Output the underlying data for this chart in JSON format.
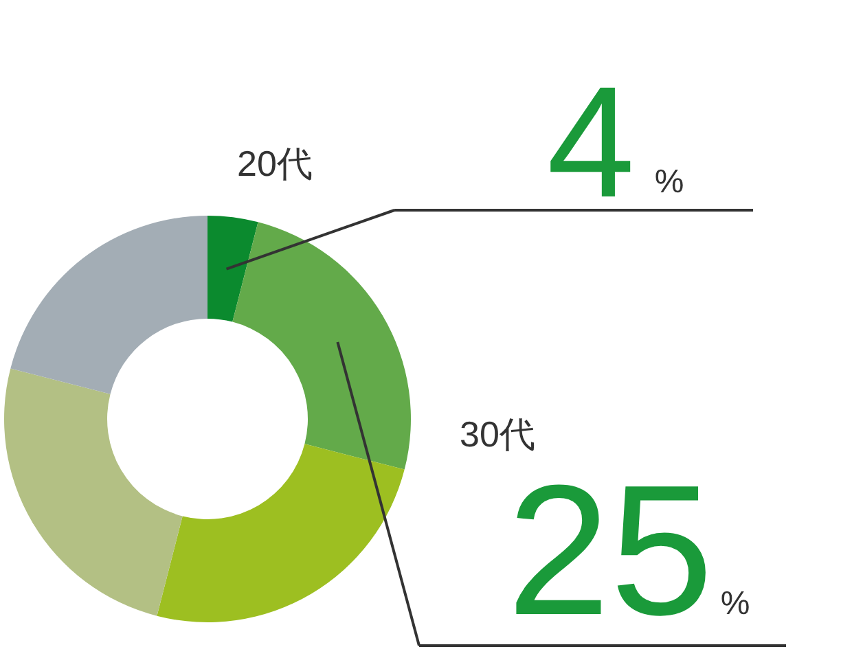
{
  "chart_data": {
    "type": "donut",
    "categories": [
      "20代",
      "30代",
      null,
      null,
      null
    ],
    "values": [
      4,
      25,
      25,
      25,
      21
    ],
    "colors": [
      "#0b8a2e",
      "#63aa4a",
      "#9dbf21",
      "#b3c084",
      "#a3adb5"
    ],
    "value_labels": [
      "4%",
      "25%",
      null,
      null,
      null
    ]
  }
}
